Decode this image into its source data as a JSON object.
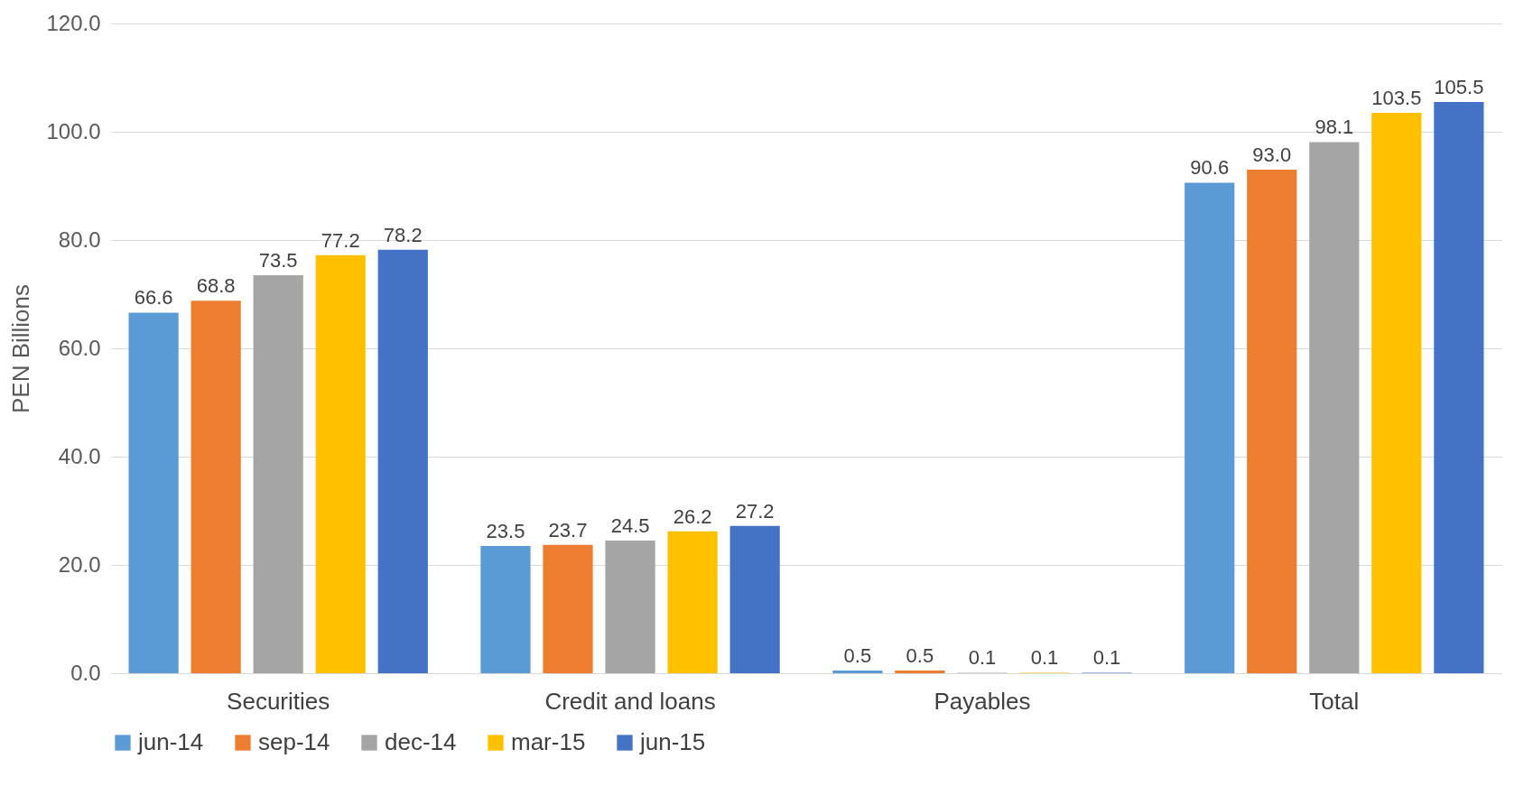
{
  "chart_data": {
    "type": "bar",
    "ylabel": "PEN Billions",
    "categories": [
      "Securities",
      "Credit and loans",
      "Payables",
      "Total"
    ],
    "series": [
      {
        "name": "jun-14",
        "color": "#5b9bd5",
        "values": [
          66.6,
          23.5,
          0.5,
          90.6
        ],
        "value_labels": [
          "66.6",
          "23.5",
          "0.5",
          "90.6"
        ]
      },
      {
        "name": "sep-14",
        "color": "#ed7d31",
        "values": [
          68.8,
          23.7,
          0.5,
          93.0
        ],
        "value_labels": [
          "68.8",
          "23.7",
          "0.5",
          "93.0"
        ]
      },
      {
        "name": "dec-14",
        "color": "#a5a5a5",
        "values": [
          73.5,
          24.5,
          0.1,
          98.1
        ],
        "value_labels": [
          "73.5",
          "24.5",
          "0.1",
          "98.1"
        ]
      },
      {
        "name": "mar-15",
        "color": "#ffc000",
        "values": [
          77.2,
          26.2,
          0.1,
          103.5
        ],
        "value_labels": [
          "77.2",
          "26.2",
          "0.1",
          "103.5"
        ]
      },
      {
        "name": "jun-15",
        "color": "#4472c4",
        "values": [
          78.2,
          27.2,
          0.1,
          105.5
        ],
        "value_labels": [
          "78.2",
          "27.2",
          "0.1",
          "105.5"
        ]
      }
    ],
    "ylim": [
      0,
      120
    ],
    "yticks": [
      {
        "value": 0,
        "label": "0.0"
      },
      {
        "value": 20,
        "label": "20.0"
      },
      {
        "value": 40,
        "label": "40.0"
      },
      {
        "value": 60,
        "label": "60.0"
      },
      {
        "value": 80,
        "label": "80.0"
      },
      {
        "value": 100,
        "label": "100.0"
      },
      {
        "value": 120,
        "label": "120.0"
      }
    ],
    "grid": "y",
    "legend": "bottom"
  }
}
